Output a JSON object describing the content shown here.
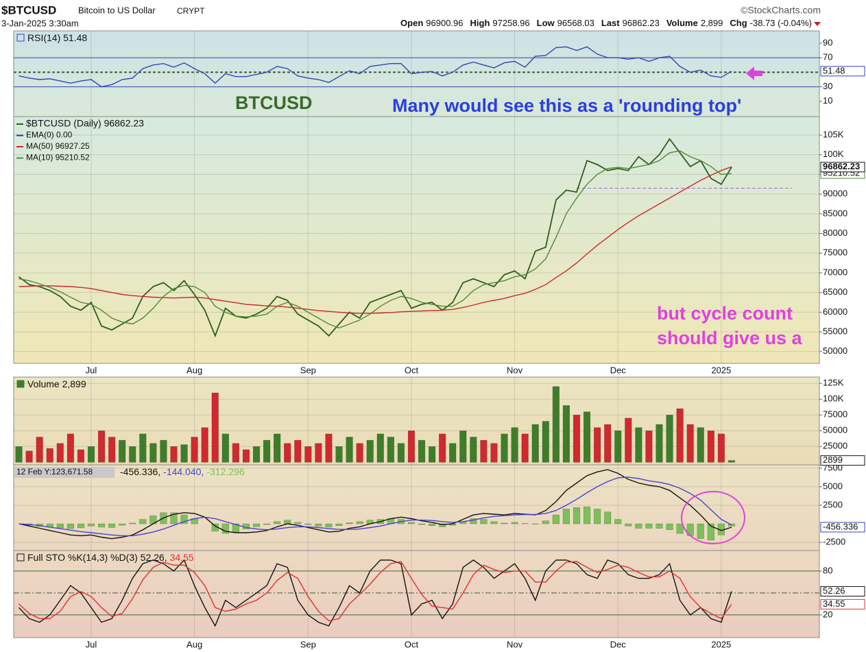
{
  "header": {
    "ticker": "$BTCUSD",
    "name": "Bitcoin to US Dollar",
    "exchange": "CRYPT",
    "source": "©StockCharts.com",
    "datetime": "3-Jan-2025 3:30am",
    "quote": [
      {
        "label": "Open",
        "value": 96900.96
      },
      {
        "label": "High",
        "value": 97258.96
      },
      {
        "label": "Low",
        "value": 96568.03
      },
      {
        "label": "Last",
        "value": 96862.23
      },
      {
        "label": "Volume",
        "value": "2,899"
      },
      {
        "label": "Chg",
        "value": "-38.73 (-0.04%)"
      }
    ]
  },
  "chart_data": [
    {
      "type": "line",
      "ylim": [
        -11,
        107
      ],
      "yticks": [
        10,
        30,
        70,
        90
      ],
      "reference_lines": [
        30,
        70
      ],
      "midline": 50,
      "series": [
        {
          "name": "RSI(14) 51.48",
          "color": "#3344b8",
          "values": [
            45,
            42,
            40,
            41,
            38,
            35,
            38,
            40,
            30,
            33,
            40,
            42,
            55,
            60,
            62,
            57,
            63,
            55,
            48,
            35,
            48,
            44,
            44,
            47,
            50,
            58,
            55,
            45,
            42,
            40,
            36,
            44,
            52,
            48,
            58,
            60,
            62,
            62,
            48,
            50,
            51,
            45,
            50,
            60,
            64,
            60,
            56,
            63,
            65,
            57,
            72,
            73,
            84,
            85,
            80,
            85,
            75,
            70,
            70,
            68,
            70,
            65,
            70,
            72,
            58,
            50,
            53,
            45,
            43,
            51.48
          ]
        }
      ]
    },
    {
      "type": "line",
      "ylim": [
        47000,
        109700
      ],
      "grid": true,
      "yticks": [
        50000,
        55000,
        60000,
        65000,
        70000,
        75000,
        80000,
        85000,
        90000,
        95000,
        {
          "value": 100000,
          "label": "100K"
        },
        {
          "value": 105000,
          "label": "105K"
        }
      ],
      "categories": [
        null,
        null,
        null,
        null,
        null,
        null,
        null,
        "Jul",
        null,
        null,
        null,
        null,
        null,
        null,
        null,
        null,
        null,
        "Aug",
        null,
        null,
        null,
        null,
        null,
        null,
        null,
        null,
        null,
        null,
        "Sep",
        null,
        null,
        null,
        null,
        null,
        null,
        null,
        null,
        null,
        "Oct",
        null,
        null,
        null,
        null,
        null,
        null,
        null,
        null,
        null,
        "Nov",
        null,
        null,
        null,
        null,
        null,
        null,
        null,
        null,
        null,
        "Dec",
        null,
        null,
        null,
        null,
        null,
        null,
        null,
        null,
        null,
        "2025",
        null
      ],
      "series": [
        {
          "name": "$BTCUSD (Daily) 96862.23",
          "color": "#2b5e1e",
          "values": [
            69000,
            67000,
            66500,
            65500,
            64000,
            61500,
            60500,
            62500,
            56500,
            55500,
            57000,
            58500,
            64000,
            66500,
            67500,
            65500,
            68000,
            64500,
            60500,
            54000,
            61000,
            59000,
            58500,
            59500,
            61000,
            64000,
            63000,
            59500,
            58000,
            56500,
            54000,
            57000,
            60000,
            58500,
            62500,
            63500,
            64500,
            65500,
            61000,
            62000,
            62500,
            60500,
            62500,
            67500,
            68500,
            67500,
            66500,
            69500,
            70500,
            68500,
            75500,
            76500,
            88500,
            91000,
            90500,
            98500,
            97500,
            96000,
            96500,
            96000,
            99500,
            97500,
            100000,
            104000,
            100500,
            97000,
            98500,
            94000,
            92500,
            96862.23
          ]
        },
        {
          "name": "MA(50) 96927.25",
          "color": "#c8282d",
          "values": [
            66500,
            66600,
            66700,
            66700,
            66600,
            66500,
            66300,
            66000,
            65500,
            65000,
            64500,
            64200,
            64000,
            63800,
            63700,
            63600,
            63700,
            63800,
            63600,
            63200,
            62800,
            62400,
            62000,
            61800,
            61600,
            61500,
            61300,
            61000,
            60700,
            60400,
            60200,
            60000,
            59800,
            59700,
            59700,
            59800,
            59900,
            60100,
            60200,
            60300,
            60400,
            60500,
            60700,
            61200,
            61800,
            62500,
            63000,
            63500,
            64200,
            64800,
            65800,
            67000,
            68800,
            70500,
            72500,
            74800,
            77000,
            79000,
            81000,
            82800,
            84500,
            86000,
            87500,
            89000,
            90500,
            92000,
            93500,
            94800,
            96000,
            96927.25
          ]
        },
        {
          "name": "MA(10) 95210.52",
          "color": "#4f8a32",
          "values": [
            68500,
            68000,
            67200,
            66300,
            65200,
            63800,
            62500,
            62000,
            60500,
            58500,
            57500,
            57000,
            58500,
            61000,
            64000,
            66000,
            66800,
            66500,
            65000,
            61500,
            60000,
            59000,
            58800,
            59000,
            59500,
            61500,
            62500,
            61500,
            60000,
            58500,
            57000,
            56000,
            57000,
            58000,
            59500,
            61500,
            63000,
            64000,
            63500,
            62500,
            62000,
            61500,
            61500,
            63000,
            65500,
            67000,
            67500,
            68000,
            69000,
            69500,
            71000,
            73500,
            79000,
            85000,
            89000,
            92500,
            95000,
            96500,
            96800,
            96500,
            97000,
            97500,
            98500,
            100500,
            101000,
            99500,
            98500,
            97000,
            95000,
            95210.52
          ]
        }
      ],
      "ema_label": "EMA(0) 0.00",
      "support_level": 91500,
      "annotations": [
        "BTCUSD",
        "Many would see this as a 'rounding top'",
        "but cycle count",
        "should give us a"
      ]
    },
    {
      "type": "bar",
      "ylim": [
        -4000,
        135000
      ],
      "grid": true,
      "up_color": "#3e7e2b",
      "down_color": "#d0292e",
      "yticks": [
        25000,
        50000,
        75000,
        {
          "value": 100000,
          "label": "100K"
        },
        {
          "value": 125000,
          "label": "125K"
        }
      ],
      "series": [
        {
          "name": "Volume 2,899",
          "values": [
            25000,
            18000,
            40000,
            22000,
            30000,
            45000,
            20000,
            25000,
            50000,
            40000,
            35000,
            25000,
            45000,
            30000,
            35000,
            25000,
            28000,
            40000,
            55000,
            110000,
            45000,
            30000,
            20000,
            25000,
            35000,
            45000,
            30000,
            35000,
            25000,
            30000,
            45000,
            25000,
            40000,
            30000,
            35000,
            45000,
            40000,
            30000,
            50000,
            35000,
            25000,
            45000,
            30000,
            50000,
            40000,
            35000,
            30000,
            45000,
            55000,
            45000,
            60000,
            65000,
            120000,
            90000,
            75000,
            80000,
            55000,
            60000,
            50000,
            70000,
            55000,
            50000,
            60000,
            75000,
            85000,
            60000,
            55000,
            50000,
            45000,
            2899
          ]
        }
      ]
    },
    {
      "type": "combo",
      "ylim": [
        -3600,
        7950
      ],
      "grid": true,
      "yticks": [
        -2500,
        2500,
        5000,
        7500
      ],
      "readout": "12 Feb Y:123,671.58",
      "series": [
        {
          "name": "-456.336,",
          "color": "#111111",
          "values": [
            0,
            -300,
            -600,
            -900,
            -1200,
            -1500,
            -1600,
            -1500,
            -1800,
            -2000,
            -1800,
            -1500,
            -800,
            0,
            800,
            1300,
            1500,
            1400,
            900,
            -300,
            -1000,
            -1200,
            -1200,
            -1100,
            -900,
            -400,
            0,
            -200,
            -500,
            -800,
            -1100,
            -1000,
            -600,
            -400,
            0,
            300,
            700,
            900,
            700,
            400,
            200,
            -100,
            0,
            600,
            1200,
            1400,
            1300,
            1200,
            1400,
            1300,
            1200,
            1800,
            3000,
            4500,
            5500,
            6500,
            7000,
            7300,
            6800,
            6000,
            5500,
            5200,
            5000,
            4500,
            3500,
            2500,
            1200,
            -300,
            -900,
            -456.336
          ]
        },
        {
          "name": "-144.040,",
          "color": "#4343d8",
          "values": [
            0,
            -100,
            -250,
            -450,
            -650,
            -850,
            -1050,
            -1200,
            -1350,
            -1500,
            -1600,
            -1600,
            -1400,
            -1100,
            -700,
            -200,
            300,
            700,
            900,
            700,
            300,
            -100,
            -500,
            -700,
            -800,
            -700,
            -500,
            -400,
            -400,
            -500,
            -650,
            -750,
            -750,
            -700,
            -500,
            -300,
            0,
            300,
            500,
            500,
            450,
            300,
            200,
            300,
            500,
            800,
            1000,
            1100,
            1200,
            1250,
            1250,
            1400,
            1800,
            2500,
            3300,
            4200,
            5000,
            5700,
            6200,
            6300,
            6100,
            5800,
            5600,
            5300,
            4800,
            4100,
            3200,
            1900,
            600,
            -144.04
          ]
        },
        {
          "name": "-312.296",
          "color": "#7dc05a",
          "style": "bar",
          "values": [
            0,
            -200,
            -350,
            -450,
            -550,
            -650,
            -550,
            -300,
            -450,
            -500,
            -200,
            100,
            600,
            1100,
            1500,
            1500,
            1200,
            700,
            0,
            -1000,
            -1300,
            -1100,
            -700,
            -400,
            -100,
            300,
            500,
            200,
            -100,
            -300,
            -450,
            -250,
            150,
            300,
            500,
            600,
            700,
            600,
            200,
            -100,
            -250,
            -400,
            -200,
            300,
            700,
            600,
            300,
            100,
            200,
            50,
            -50,
            400,
            1200,
            2000,
            2200,
            2300,
            2000,
            1600,
            600,
            -300,
            -600,
            -600,
            -600,
            -800,
            -1300,
            -1600,
            -2000,
            -2200,
            -1500,
            -312.296
          ]
        }
      ]
    },
    {
      "type": "line",
      "ylim": [
        -11,
        108
      ],
      "yticks": [
        20,
        80
      ],
      "reference_lines": [
        20,
        80
      ],
      "midline": 50,
      "categories": [
        null,
        null,
        null,
        null,
        null,
        null,
        null,
        "Jul",
        null,
        null,
        null,
        null,
        null,
        null,
        null,
        null,
        null,
        "Aug",
        null,
        null,
        null,
        null,
        null,
        null,
        null,
        null,
        null,
        null,
        "Sep",
        null,
        null,
        null,
        null,
        null,
        null,
        null,
        null,
        null,
        "Oct",
        null,
        null,
        null,
        null,
        null,
        null,
        null,
        null,
        null,
        "Nov",
        null,
        null,
        null,
        null,
        null,
        null,
        null,
        null,
        null,
        "Dec",
        null,
        null,
        null,
        null,
        null,
        null,
        null,
        null,
        null,
        "2025",
        null
      ],
      "series": [
        {
          "name": "Full STO %K(14,3) %D(3) 52.26,",
          "color": "#111111",
          "values": [
            30,
            15,
            10,
            20,
            40,
            60,
            50,
            30,
            10,
            15,
            40,
            70,
            90,
            95,
            90,
            80,
            95,
            60,
            30,
            5,
            40,
            30,
            40,
            50,
            60,
            90,
            85,
            40,
            20,
            10,
            5,
            30,
            60,
            50,
            80,
            95,
            95,
            90,
            20,
            35,
            40,
            15,
            35,
            85,
            95,
            85,
            70,
            80,
            90,
            70,
            40,
            80,
            95,
            95,
            90,
            75,
            70,
            95,
            90,
            75,
            70,
            70,
            75,
            90,
            40,
            20,
            30,
            15,
            10,
            52.26
          ]
        },
        {
          "name": "34.55",
          "color": "#e03030",
          "values": [
            35,
            22,
            15,
            15,
            25,
            45,
            52,
            45,
            30,
            18,
            22,
            42,
            68,
            85,
            92,
            88,
            88,
            78,
            60,
            30,
            25,
            28,
            35,
            40,
            50,
            67,
            78,
            70,
            45,
            25,
            12,
            15,
            35,
            48,
            62,
            78,
            90,
            93,
            70,
            48,
            32,
            30,
            28,
            50,
            75,
            88,
            82,
            78,
            80,
            80,
            65,
            65,
            80,
            92,
            93,
            85,
            78,
            82,
            88,
            85,
            78,
            72,
            72,
            80,
            70,
            45,
            30,
            22,
            15,
            34.55
          ]
        }
      ]
    }
  ]
}
